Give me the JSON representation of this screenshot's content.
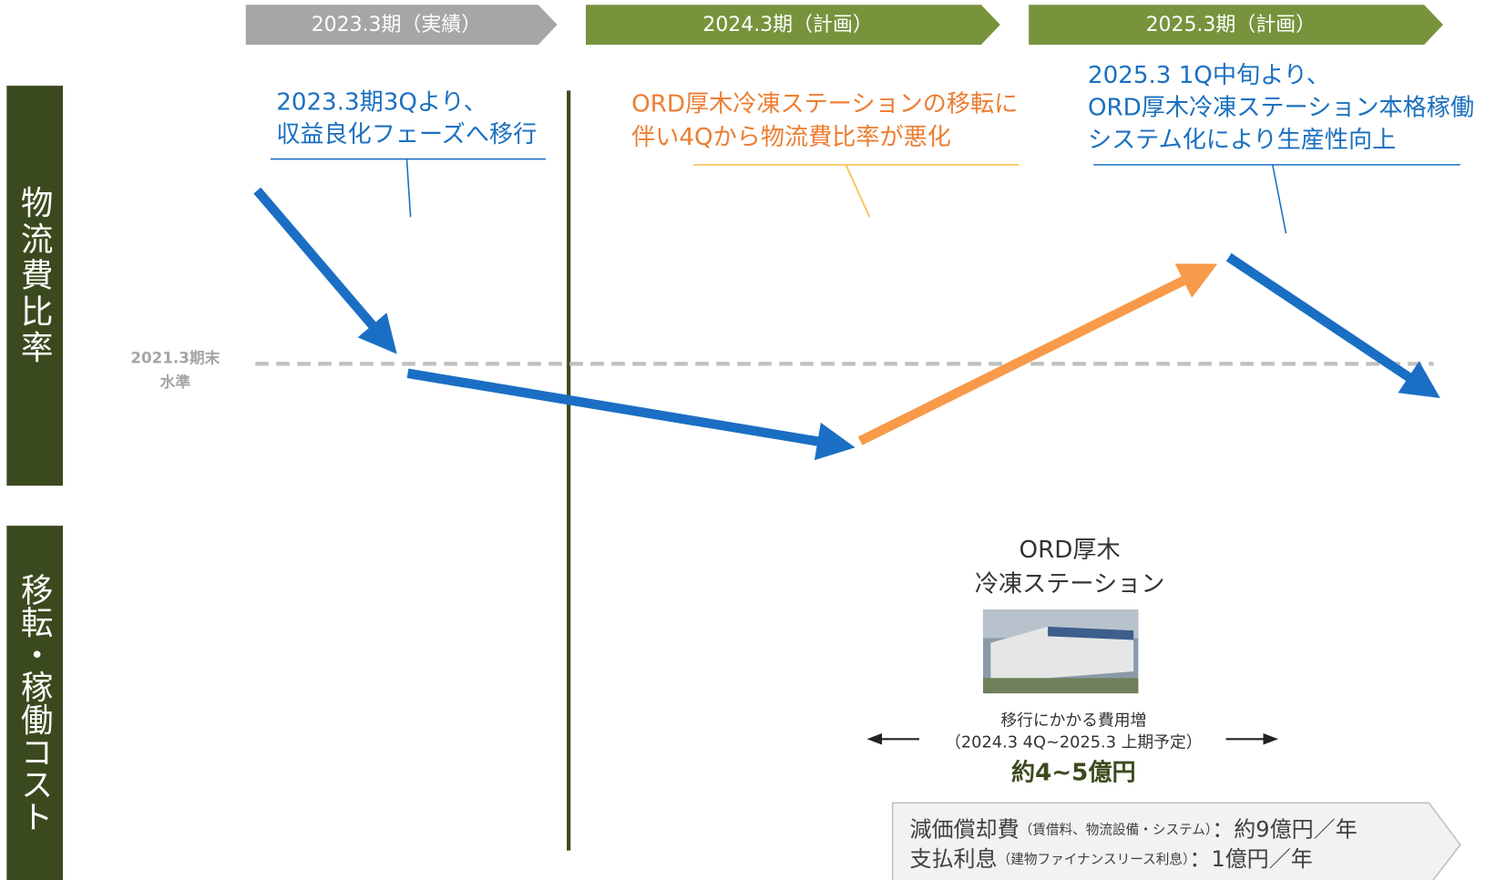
{
  "periods": [
    "2023.3期（実績）",
    "2024.3期（計画）",
    "2025.3期（計画）"
  ],
  "side_labels": [
    "物流費比率",
    "移転・稼働コスト"
  ],
  "baseline_label": [
    "2021.3期末",
    "水準"
  ],
  "annotations": [
    {
      "lines": [
        "2023.3期3Qより、",
        "収益良化フェーズへ移行"
      ]
    },
    {
      "lines": [
        "ORD厚木冷凍ステーションの移転に",
        "伴い4Qから物流費比率が悪化"
      ]
    },
    {
      "lines": [
        "2025.3 1Q中旬より、",
        "ORD厚木冷凍ステーション本格稼働",
        "システム化により生産性向上"
      ]
    }
  ],
  "facility": {
    "name": [
      "ORD厚木",
      "冷凍ステーション"
    ]
  },
  "cost": {
    "label": "移行にかかる費用増",
    "period": "（2024.3 4Q~2025.3 上期予定）",
    "amount": "約4~5億円"
  },
  "breakdown": [
    {
      "item": "減価償却費",
      "detail": "（賃借料、物流設備・システム）",
      "amount": "：約9億円／年"
    },
    {
      "item": "支払利息",
      "detail": "（建物ファイナンスリース利息）",
      "amount": "：1億円／年"
    }
  ]
}
